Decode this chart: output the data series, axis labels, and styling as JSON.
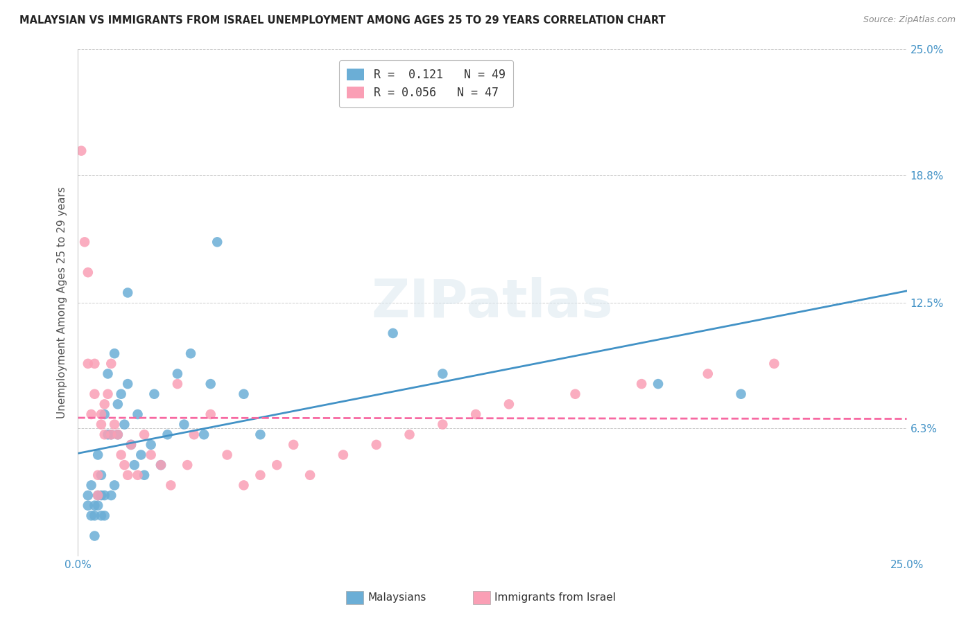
{
  "title": "MALAYSIAN VS IMMIGRANTS FROM ISRAEL UNEMPLOYMENT AMONG AGES 25 TO 29 YEARS CORRELATION CHART",
  "source": "Source: ZipAtlas.com",
  "ylabel": "Unemployment Among Ages 25 to 29 years",
  "xlim": [
    0.0,
    0.25
  ],
  "ylim": [
    0.0,
    0.25
  ],
  "ytick_vals": [
    0.063,
    0.125,
    0.188,
    0.25
  ],
  "ytick_labels": [
    "6.3%",
    "12.5%",
    "18.8%",
    "25.0%"
  ],
  "xtick_vals": [
    0.0,
    0.05,
    0.1,
    0.15,
    0.2,
    0.25
  ],
  "xtick_labels": [
    "0.0%",
    "",
    "",
    "",
    "",
    "25.0%"
  ],
  "color_blue": "#6baed6",
  "color_pink": "#fa9fb5",
  "color_blue_line": "#4292c6",
  "color_pink_line": "#f768a1",
  "malaysians_x": [
    0.003,
    0.003,
    0.004,
    0.004,
    0.005,
    0.005,
    0.006,
    0.006,
    0.007,
    0.007,
    0.008,
    0.008,
    0.009,
    0.009,
    0.01,
    0.01,
    0.011,
    0.012,
    0.012,
    0.013,
    0.014,
    0.015,
    0.016,
    0.017,
    0.018,
    0.019,
    0.02,
    0.022,
    0.023,
    0.025,
    0.027,
    0.03,
    0.032,
    0.034,
    0.038,
    0.04,
    0.042,
    0.05,
    0.055,
    0.095,
    0.11,
    0.175,
    0.2,
    0.005,
    0.006,
    0.007,
    0.008,
    0.011,
    0.015
  ],
  "malaysians_y": [
    0.03,
    0.025,
    0.02,
    0.035,
    0.02,
    0.025,
    0.03,
    0.05,
    0.02,
    0.04,
    0.02,
    0.07,
    0.06,
    0.09,
    0.03,
    0.06,
    0.1,
    0.06,
    0.075,
    0.08,
    0.065,
    0.085,
    0.055,
    0.045,
    0.07,
    0.05,
    0.04,
    0.055,
    0.08,
    0.045,
    0.06,
    0.09,
    0.065,
    0.1,
    0.06,
    0.085,
    0.155,
    0.08,
    0.06,
    0.11,
    0.09,
    0.085,
    0.08,
    0.01,
    0.025,
    0.03,
    0.03,
    0.035,
    0.13
  ],
  "israel_x": [
    0.001,
    0.002,
    0.003,
    0.003,
    0.004,
    0.005,
    0.005,
    0.006,
    0.006,
    0.007,
    0.007,
    0.008,
    0.008,
    0.009,
    0.01,
    0.01,
    0.011,
    0.012,
    0.013,
    0.014,
    0.015,
    0.016,
    0.018,
    0.02,
    0.022,
    0.025,
    0.028,
    0.03,
    0.033,
    0.035,
    0.04,
    0.045,
    0.05,
    0.055,
    0.06,
    0.065,
    0.07,
    0.08,
    0.09,
    0.1,
    0.11,
    0.12,
    0.13,
    0.15,
    0.17,
    0.19,
    0.21
  ],
  "israel_y": [
    0.2,
    0.155,
    0.14,
    0.095,
    0.07,
    0.08,
    0.095,
    0.04,
    0.03,
    0.065,
    0.07,
    0.075,
    0.06,
    0.08,
    0.06,
    0.095,
    0.065,
    0.06,
    0.05,
    0.045,
    0.04,
    0.055,
    0.04,
    0.06,
    0.05,
    0.045,
    0.035,
    0.085,
    0.045,
    0.06,
    0.07,
    0.05,
    0.035,
    0.04,
    0.045,
    0.055,
    0.04,
    0.05,
    0.055,
    0.06,
    0.065,
    0.07,
    0.075,
    0.08,
    0.085,
    0.09,
    0.095
  ]
}
